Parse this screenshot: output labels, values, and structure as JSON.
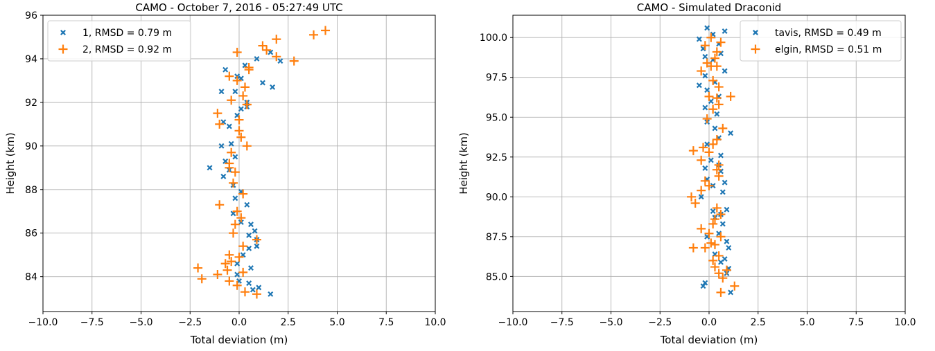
{
  "colors": {
    "series1": "#1f77b4",
    "series2": "#ff7f0e",
    "grid": "#b0b0b0"
  },
  "chart_data": [
    {
      "type": "scatter",
      "title": "CAMO - October 7, 2016 - 05:27:49 UTC",
      "xlabel": "Total deviation (m)",
      "ylabel": "Height (km)",
      "xlim": [
        -10,
        10
      ],
      "ylim": [
        82.4,
        96.0
      ],
      "xticks": [
        -10,
        -7.5,
        -5,
        -2.5,
        0,
        2.5,
        5,
        7.5,
        10
      ],
      "xtick_labels": [
        "−10.0",
        "−7.5",
        "−5.0",
        "−2.5",
        "0.0",
        "2.5",
        "5.0",
        "7.5",
        "10.0"
      ],
      "yticks": [
        84,
        86,
        88,
        90,
        92,
        94,
        96
      ],
      "ytick_labels": [
        "84",
        "86",
        "88",
        "90",
        "92",
        "94",
        "96"
      ],
      "grid": true,
      "legend_position": "top-left",
      "series": [
        {
          "name": "1, RMSD = 0.79 m",
          "marker": "x",
          "color": "#1f77b4",
          "x": [
            2.1,
            1.6,
            0.9,
            1.2,
            1.7,
            0.3,
            -0.7,
            -0.1,
            0.1,
            0.4,
            -0.2,
            -0.9,
            0.4,
            0.1,
            -0.1,
            -0.8,
            -0.5,
            -0.4,
            -0.9,
            -1.5,
            -0.2,
            -0.7,
            -0.5,
            -0.8,
            -0.3,
            0.1,
            -0.2,
            0.4,
            -0.3,
            0.1,
            0.6,
            0.8,
            0.5,
            0.9,
            0.5,
            0.2,
            0.9,
            -0.1,
            0.6,
            -0.1,
            1.0,
            0.5,
            0.0,
            0.7,
            1.6
          ],
          "y": [
            93.9,
            94.3,
            94.0,
            92.9,
            92.7,
            93.7,
            93.5,
            93.2,
            93.1,
            92.0,
            92.5,
            92.5,
            91.8,
            91.7,
            91.4,
            91.1,
            90.9,
            90.1,
            90.0,
            89.0,
            89.5,
            89.3,
            88.9,
            88.6,
            88.2,
            87.9,
            87.6,
            87.3,
            86.9,
            86.5,
            86.4,
            86.1,
            85.9,
            85.7,
            85.3,
            85.0,
            85.4,
            84.6,
            84.4,
            84.1,
            83.5,
            83.7,
            83.8,
            83.4,
            83.2
          ]
        },
        {
          "name": "2, RMSD = 0.92 m",
          "marker": "+",
          "color": "#ff7f0e",
          "x": [
            4.4,
            3.8,
            1.9,
            1.4,
            1.2,
            2.8,
            1.9,
            -0.1,
            0.5,
            0.5,
            -0.5,
            -0.1,
            0.3,
            0.2,
            0.4,
            -0.4,
            -1.1,
            0.4,
            0.0,
            -1.0,
            0.0,
            0.1,
            0.4,
            -0.4,
            -0.5,
            -0.5,
            -0.2,
            -0.3,
            0.2,
            -1.0,
            -0.1,
            0.1,
            -0.2,
            -0.3,
            0.9,
            0.2,
            -0.5,
            0.0,
            -0.4,
            -0.7,
            0.2,
            -0.5,
            -2.1,
            -0.6,
            -1.9,
            -1.1,
            -0.1,
            0.3,
            0.9
          ],
          "y": [
            95.3,
            95.1,
            94.9,
            94.4,
            94.6,
            93.9,
            94.1,
            94.3,
            93.6,
            93.5,
            93.2,
            93.0,
            92.7,
            92.3,
            91.9,
            92.1,
            91.5,
            91.9,
            91.2,
            91.0,
            90.7,
            90.4,
            90.0,
            89.7,
            89.2,
            89.0,
            88.8,
            88.3,
            87.8,
            87.3,
            87.0,
            86.7,
            86.4,
            86.0,
            85.7,
            85.4,
            85.0,
            84.9,
            84.7,
            84.6,
            84.2,
            83.8,
            84.4,
            84.3,
            83.9,
            84.1,
            83.6,
            83.3,
            83.2
          ]
        }
      ]
    },
    {
      "type": "scatter",
      "title": "CAMO - Simulated Draconid",
      "xlabel": "Total deviation (m)",
      "ylabel": "Height (km)",
      "xlim": [
        -10,
        10
      ],
      "ylim": [
        82.8,
        101.4
      ],
      "xticks": [
        -10,
        -7.5,
        -5,
        -2.5,
        0,
        2.5,
        5,
        7.5,
        10
      ],
      "xtick_labels": [
        "−10.0",
        "−7.5",
        "−5.0",
        "−2.5",
        "0.0",
        "2.5",
        "5.0",
        "7.5",
        "10.0"
      ],
      "yticks": [
        85,
        87.5,
        90,
        92.5,
        95,
        97.5,
        100
      ],
      "ytick_labels": [
        "85.0",
        "87.5",
        "90.0",
        "92.5",
        "95.0",
        "97.5",
        "100.0"
      ],
      "grid": true,
      "legend_position": "top-right",
      "series": [
        {
          "name": "tavis, RMSD = 0.49 m",
          "marker": "x",
          "color": "#1f77b4",
          "x": [
            0.8,
            -0.1,
            -0.5,
            0.2,
            0.5,
            -0.3,
            0.6,
            0.2,
            -0.2,
            0.8,
            -0.2,
            -0.5,
            0.3,
            -0.1,
            0.5,
            0.1,
            -0.2,
            0.4,
            1.1,
            -0.1,
            0.3,
            0.5,
            -0.1,
            0.6,
            0.1,
            0.5,
            0.8,
            -0.2,
            0.6,
            -0.1,
            0.2,
            0.7,
            -0.4,
            0.9,
            0.2,
            0.6,
            0.3,
            0.7,
            0.9,
            -0.1,
            0.5,
            1.0,
            0.3,
            0.8,
            0.6,
            1.0,
            -0.2,
            0.9,
            -0.3,
            1.1
          ],
          "y": [
            100.4,
            100.6,
            99.9,
            100.2,
            99.6,
            99.3,
            99.0,
            98.6,
            98.8,
            97.9,
            97.6,
            97.0,
            97.2,
            96.7,
            96.3,
            96.0,
            95.6,
            95.2,
            94.0,
            94.7,
            94.3,
            93.7,
            93.3,
            92.6,
            92.3,
            92.0,
            90.9,
            91.8,
            91.6,
            91.1,
            90.7,
            90.3,
            90.0,
            89.2,
            89.1,
            88.9,
            88.7,
            88.3,
            87.2,
            87.5,
            87.7,
            86.8,
            86.4,
            86.1,
            85.9,
            85.5,
            84.6,
            85.2,
            84.4,
            84.0
          ]
        },
        {
          "name": "elgin, RMSD = 0.51 m",
          "marker": "+",
          "color": "#ff7f0e",
          "x": [
            0.1,
            0.6,
            -0.2,
            0.4,
            0.3,
            -0.1,
            0.1,
            0.4,
            -0.4,
            0.2,
            0.5,
            0.4,
            0.0,
            1.1,
            0.5,
            0.2,
            -0.1,
            0.7,
            0.4,
            0.2,
            -0.3,
            -0.8,
            0.0,
            -0.4,
            0.5,
            0.4,
            -0.2,
            0.5,
            -0.4,
            0.0,
            -0.9,
            -0.7,
            0.4,
            0.6,
            0.3,
            0.2,
            -0.4,
            0.0,
            0.1,
            0.6,
            0.3,
            -0.2,
            -0.8,
            0.5,
            0.2,
            0.3,
            0.9,
            0.5,
            0.7,
            1.3,
            0.6
          ],
          "y": [
            100.0,
            99.7,
            99.5,
            99.1,
            98.7,
            98.4,
            98.2,
            98.2,
            97.9,
            97.3,
            96.9,
            96.2,
            96.3,
            96.3,
            95.8,
            95.5,
            94.9,
            94.3,
            93.6,
            93.3,
            93.1,
            92.9,
            92.8,
            92.3,
            92.0,
            91.7,
            91.0,
            91.3,
            90.4,
            90.7,
            90.0,
            89.6,
            89.3,
            88.9,
            88.6,
            88.3,
            88.0,
            87.7,
            87.1,
            87.5,
            87.0,
            86.8,
            86.8,
            86.3,
            86.0,
            85.6,
            85.4,
            85.2,
            84.9,
            84.4,
            84.0
          ]
        }
      ]
    }
  ]
}
